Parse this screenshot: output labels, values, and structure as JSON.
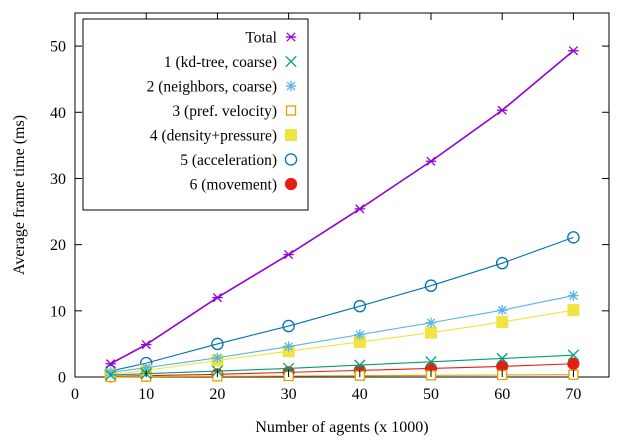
{
  "chart_data": {
    "type": "line",
    "title": "",
    "xlabel": "Number of agents (x 1000)",
    "ylabel": "Average frame time (ms)",
    "xlim": [
      0,
      75
    ],
    "ylim": [
      0,
      55
    ],
    "xticks": [
      0,
      10,
      20,
      30,
      40,
      50,
      60,
      70
    ],
    "yticks": [
      0,
      10,
      20,
      30,
      40,
      50
    ],
    "grid": false,
    "legend_position": "top-left",
    "x": [
      5,
      10,
      20,
      30,
      40,
      50,
      60,
      70
    ],
    "series": [
      {
        "name": "Total",
        "color": "#9400d3",
        "marker": "star",
        "values": [
          2.0,
          4.9,
          12.0,
          18.5,
          25.4,
          32.6,
          40.3,
          49.3
        ]
      },
      {
        "name": "1 (kd-tree, coarse)",
        "color": "#009e73",
        "marker": "x",
        "values": [
          0.3,
          0.5,
          0.9,
          1.3,
          1.8,
          2.3,
          2.8,
          3.3
        ]
      },
      {
        "name": "2 (neighbors, coarse)",
        "color": "#56b4e9",
        "marker": "asterisk",
        "values": [
          0.7,
          1.4,
          2.9,
          4.6,
          6.4,
          8.2,
          10.1,
          12.3
        ]
      },
      {
        "name": "3 (pref. velocity)",
        "color": "#e69f00",
        "marker": "square-open",
        "values": [
          0.0,
          0.05,
          0.1,
          0.15,
          0.2,
          0.25,
          0.3,
          0.35
        ]
      },
      {
        "name": "4 (density+pressure)",
        "color": "#f0e442",
        "marker": "square-filled",
        "values": [
          0.4,
          1.0,
          2.5,
          3.9,
          5.3,
          6.7,
          8.3,
          10.1
        ]
      },
      {
        "name": "5 (acceleration)",
        "color": "#0072b2",
        "marker": "circle-open",
        "values": [
          0.9,
          2.1,
          5.0,
          7.7,
          10.7,
          13.8,
          17.2,
          21.1
        ]
      },
      {
        "name": "6 (movement)",
        "color": "#e51e10",
        "marker": "circle-filled",
        "values": [
          0.1,
          0.2,
          0.4,
          0.7,
          1.0,
          1.3,
          1.6,
          2.0
        ]
      }
    ]
  }
}
